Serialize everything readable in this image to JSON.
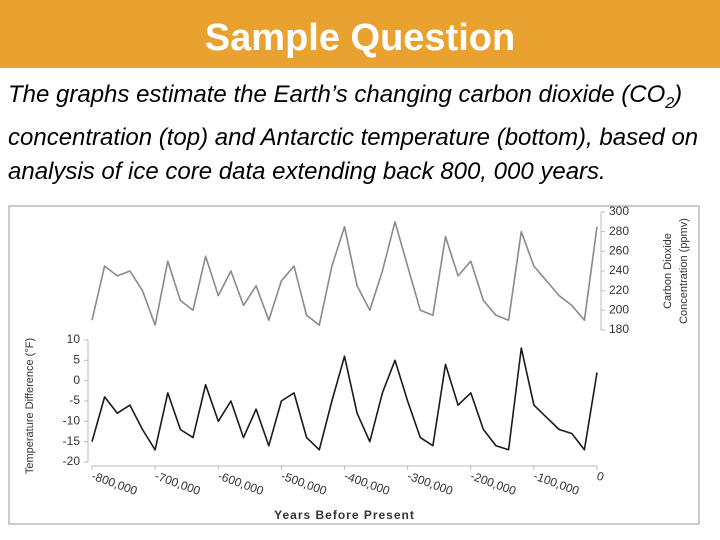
{
  "header": {
    "title": "Sample Question"
  },
  "body": {
    "parts": [
      "The graphs estimate the Earth’s changing carbon dioxide (CO",
      "2",
      ") concentration (top) and Antarctic temperature (bottom), based on analysis of ice core data extending back 800, 000 years."
    ]
  },
  "chart_data": [
    {
      "type": "line",
      "y_label": [
        "Carbon Dioxide",
        "Concentration (ppmv)"
      ],
      "y_axis_side": "right",
      "xlim": [
        -800000,
        0
      ],
      "ylim": [
        180,
        300
      ],
      "yticks": [
        180,
        200,
        220,
        240,
        260,
        280,
        300
      ],
      "x": [
        -800000,
        -780000,
        -760000,
        -740000,
        -720000,
        -700000,
        -680000,
        -660000,
        -640000,
        -620000,
        -600000,
        -580000,
        -560000,
        -540000,
        -520000,
        -500000,
        -480000,
        -460000,
        -440000,
        -420000,
        -400000,
        -380000,
        -360000,
        -340000,
        -320000,
        -300000,
        -280000,
        -260000,
        -240000,
        -220000,
        -200000,
        -180000,
        -160000,
        -140000,
        -120000,
        -100000,
        -80000,
        -60000,
        -40000,
        -20000,
        0
      ],
      "series": [
        {
          "color": "#8a8a8a",
          "values": [
            190,
            245,
            235,
            240,
            220,
            185,
            250,
            210,
            200,
            255,
            215,
            240,
            205,
            225,
            190,
            230,
            245,
            195,
            185,
            245,
            285,
            225,
            200,
            240,
            290,
            245,
            200,
            195,
            275,
            235,
            250,
            210,
            195,
            190,
            280,
            245,
            230,
            215,
            205,
            190,
            285
          ]
        }
      ]
    },
    {
      "type": "line",
      "y_label": "Temperature Difference (°F)",
      "x_label": "Years Before Present",
      "y_axis_side": "left",
      "xlim": [
        -800000,
        0
      ],
      "ylim": [
        -20,
        10
      ],
      "yticks": [
        -20,
        -15,
        -10,
        -5,
        0,
        5,
        10
      ],
      "xticks": [
        {
          "value": -800000,
          "label": "-800,000"
        },
        {
          "value": -700000,
          "label": "-700,000"
        },
        {
          "value": -600000,
          "label": "-600,000"
        },
        {
          "value": -500000,
          "label": "-500,000"
        },
        {
          "value": -400000,
          "label": "-400,000"
        },
        {
          "value": -300000,
          "label": "-300,000"
        },
        {
          "value": -200000,
          "label": "-200,000"
        },
        {
          "value": -100000,
          "label": "-100,000"
        },
        0
      ],
      "x": [
        -800000,
        -780000,
        -760000,
        -740000,
        -720000,
        -700000,
        -680000,
        -660000,
        -640000,
        -620000,
        -600000,
        -580000,
        -560000,
        -540000,
        -520000,
        -500000,
        -480000,
        -460000,
        -440000,
        -420000,
        -400000,
        -380000,
        -360000,
        -340000,
        -320000,
        -300000,
        -280000,
        -260000,
        -240000,
        -220000,
        -200000,
        -180000,
        -160000,
        -140000,
        -120000,
        -100000,
        -80000,
        -60000,
        -40000,
        -20000,
        0
      ],
      "series": [
        {
          "color": "#1a1a1a",
          "values": [
            -15,
            -4,
            -8,
            -6,
            -12,
            -17,
            -3,
            -12,
            -14,
            -1,
            -10,
            -5,
            -14,
            -7,
            -16,
            -5,
            -3,
            -14,
            -17,
            -5,
            6,
            -8,
            -15,
            -3,
            5,
            -5,
            -14,
            -16,
            4,
            -6,
            -3,
            -12,
            -16,
            -17,
            8,
            -6,
            -9,
            -12,
            -13,
            -17,
            2
          ]
        }
      ]
    }
  ]
}
